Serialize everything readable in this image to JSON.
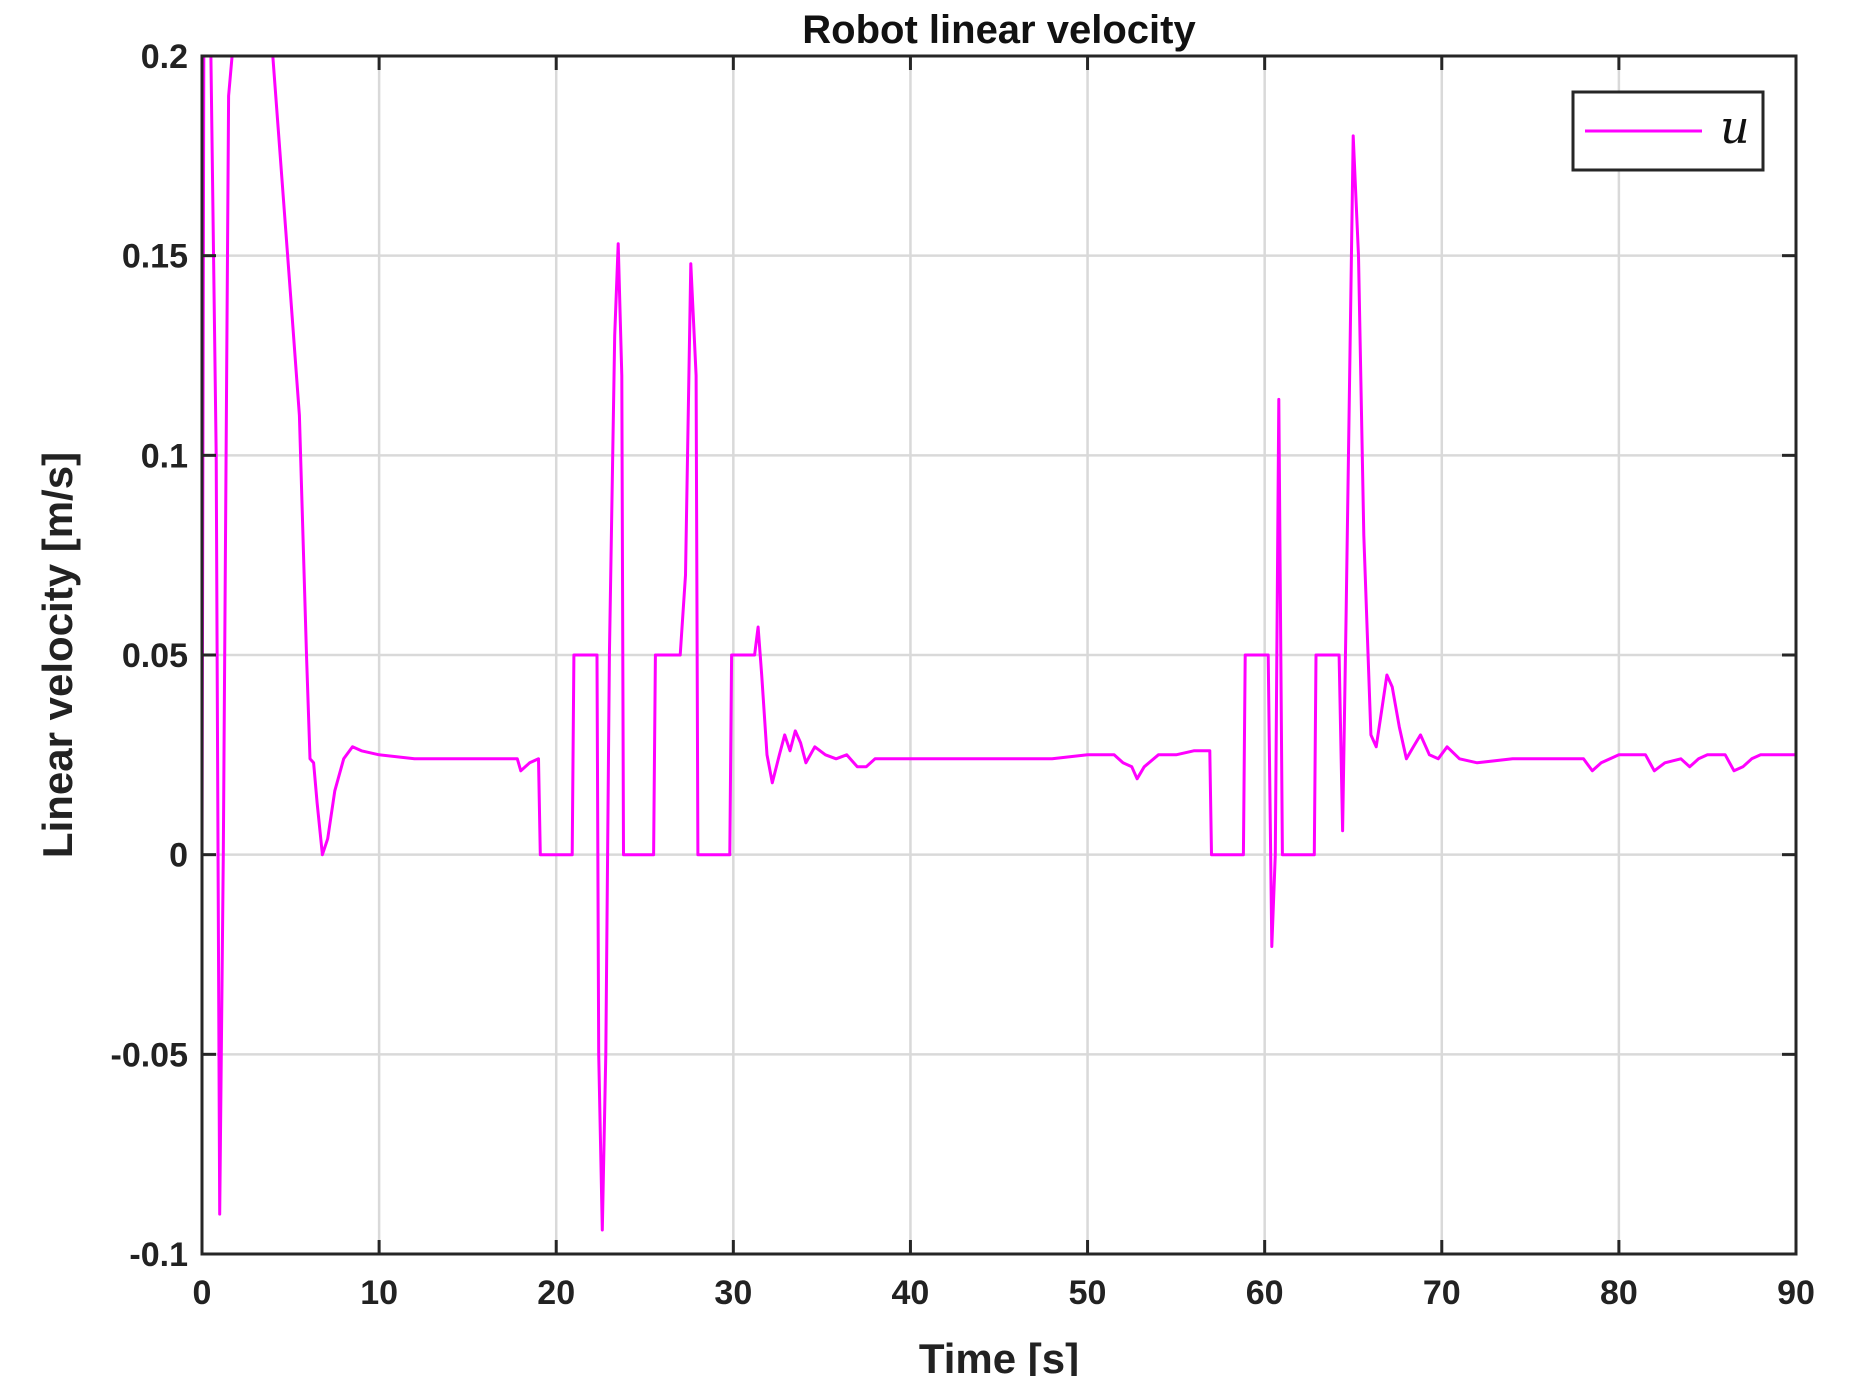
{
  "chart_data": {
    "type": "line",
    "title": "Robot linear velocity",
    "xlabel": "Time [s]",
    "ylabel": "Linear velocity [m/s]",
    "xlim": [
      0,
      90
    ],
    "ylim": [
      -0.1,
      0.2
    ],
    "x_ticks": [
      0,
      10,
      20,
      30,
      40,
      50,
      60,
      70,
      80,
      90
    ],
    "x_tick_labels": [
      "0",
      "10",
      "20",
      "30",
      "40",
      "50",
      "60",
      "70",
      "80",
      "90"
    ],
    "y_ticks": [
      -0.1,
      -0.05,
      0,
      0.05,
      0.1,
      0.15,
      0.2
    ],
    "y_tick_labels": [
      "-0.1",
      "-0.05",
      "0",
      "0.05",
      "0.1",
      "0.15",
      "0.2"
    ],
    "grid": true,
    "legend_position": "top-right",
    "series": [
      {
        "name": "u",
        "color": "#ff00ff",
        "points": [
          [
            0,
            0
          ],
          [
            0.1,
            0.2
          ],
          [
            0.5,
            0.2
          ],
          [
            0.8,
            0.1
          ],
          [
            1.0,
            -0.09
          ],
          [
            1.2,
            0.0
          ],
          [
            1.5,
            0.19
          ],
          [
            1.7,
            0.2
          ],
          [
            4.0,
            0.2
          ],
          [
            4.5,
            0.17
          ],
          [
            5.0,
            0.14
          ],
          [
            5.5,
            0.11
          ],
          [
            5.9,
            0.05
          ],
          [
            6.1,
            0.024
          ],
          [
            6.3,
            0.023
          ],
          [
            6.5,
            0.013
          ],
          [
            6.8,
            0.0
          ],
          [
            7.1,
            0.004
          ],
          [
            7.5,
            0.016
          ],
          [
            8.0,
            0.024
          ],
          [
            8.5,
            0.027
          ],
          [
            9.0,
            0.026
          ],
          [
            10,
            0.025
          ],
          [
            12,
            0.024
          ],
          [
            14,
            0.024
          ],
          [
            16,
            0.024
          ],
          [
            17.8,
            0.024
          ],
          [
            18.0,
            0.021
          ],
          [
            18.5,
            0.023
          ],
          [
            19.0,
            0.024
          ],
          [
            19.1,
            0.0
          ],
          [
            20.9,
            0.0
          ],
          [
            21.0,
            0.05
          ],
          [
            22.3,
            0.05
          ],
          [
            22.4,
            -0.05
          ],
          [
            22.6,
            -0.094
          ],
          [
            22.8,
            -0.05
          ],
          [
            23.0,
            0.05
          ],
          [
            23.3,
            0.13
          ],
          [
            23.5,
            0.153
          ],
          [
            23.7,
            0.12
          ],
          [
            23.8,
            0.0
          ],
          [
            25.5,
            0.0
          ],
          [
            25.6,
            0.05
          ],
          [
            27.0,
            0.05
          ],
          [
            27.3,
            0.07
          ],
          [
            27.6,
            0.148
          ],
          [
            27.9,
            0.12
          ],
          [
            28.0,
            0.0
          ],
          [
            29.8,
            0.0
          ],
          [
            29.9,
            0.05
          ],
          [
            31.2,
            0.05
          ],
          [
            31.4,
            0.057
          ],
          [
            31.6,
            0.045
          ],
          [
            31.9,
            0.025
          ],
          [
            32.2,
            0.018
          ],
          [
            32.6,
            0.025
          ],
          [
            32.9,
            0.03
          ],
          [
            33.2,
            0.026
          ],
          [
            33.5,
            0.031
          ],
          [
            33.8,
            0.028
          ],
          [
            34.1,
            0.023
          ],
          [
            34.6,
            0.027
          ],
          [
            35.2,
            0.025
          ],
          [
            35.8,
            0.024
          ],
          [
            36.4,
            0.025
          ],
          [
            37.0,
            0.022
          ],
          [
            37.5,
            0.022
          ],
          [
            38.0,
            0.024
          ],
          [
            40,
            0.024
          ],
          [
            42,
            0.024
          ],
          [
            44,
            0.024
          ],
          [
            46,
            0.024
          ],
          [
            48,
            0.024
          ],
          [
            50,
            0.025
          ],
          [
            51.5,
            0.025
          ],
          [
            52.0,
            0.023
          ],
          [
            52.5,
            0.022
          ],
          [
            52.8,
            0.019
          ],
          [
            53.2,
            0.022
          ],
          [
            54.0,
            0.025
          ],
          [
            55.0,
            0.025
          ],
          [
            56.0,
            0.026
          ],
          [
            56.9,
            0.026
          ],
          [
            57.0,
            0.0
          ],
          [
            58.8,
            0.0
          ],
          [
            58.9,
            0.05
          ],
          [
            60.2,
            0.05
          ],
          [
            60.4,
            -0.023
          ],
          [
            60.6,
            0.0
          ],
          [
            60.8,
            0.114
          ],
          [
            61.0,
            0.0
          ],
          [
            62.8,
            0.0
          ],
          [
            62.9,
            0.05
          ],
          [
            64.2,
            0.05
          ],
          [
            64.4,
            0.006
          ],
          [
            64.6,
            0.06
          ],
          [
            65.0,
            0.18
          ],
          [
            65.3,
            0.15
          ],
          [
            65.6,
            0.08
          ],
          [
            66.0,
            0.03
          ],
          [
            66.3,
            0.027
          ],
          [
            66.6,
            0.036
          ],
          [
            66.9,
            0.045
          ],
          [
            67.2,
            0.042
          ],
          [
            67.6,
            0.032
          ],
          [
            68.0,
            0.024
          ],
          [
            68.4,
            0.027
          ],
          [
            68.8,
            0.03
          ],
          [
            69.3,
            0.025
          ],
          [
            69.8,
            0.024
          ],
          [
            70.3,
            0.027
          ],
          [
            71.0,
            0.024
          ],
          [
            72.0,
            0.023
          ],
          [
            74.0,
            0.024
          ],
          [
            76.0,
            0.024
          ],
          [
            78.0,
            0.024
          ],
          [
            78.5,
            0.021
          ],
          [
            79.0,
            0.023
          ],
          [
            80.0,
            0.025
          ],
          [
            81.5,
            0.025
          ],
          [
            82.0,
            0.021
          ],
          [
            82.6,
            0.023
          ],
          [
            83.5,
            0.024
          ],
          [
            84.0,
            0.022
          ],
          [
            84.5,
            0.024
          ],
          [
            85.0,
            0.025
          ],
          [
            86.0,
            0.025
          ],
          [
            86.5,
            0.021
          ],
          [
            87.0,
            0.022
          ],
          [
            87.5,
            0.024
          ],
          [
            88.0,
            0.025
          ],
          [
            89.0,
            0.025
          ],
          [
            90.0,
            0.025
          ]
        ]
      }
    ]
  }
}
